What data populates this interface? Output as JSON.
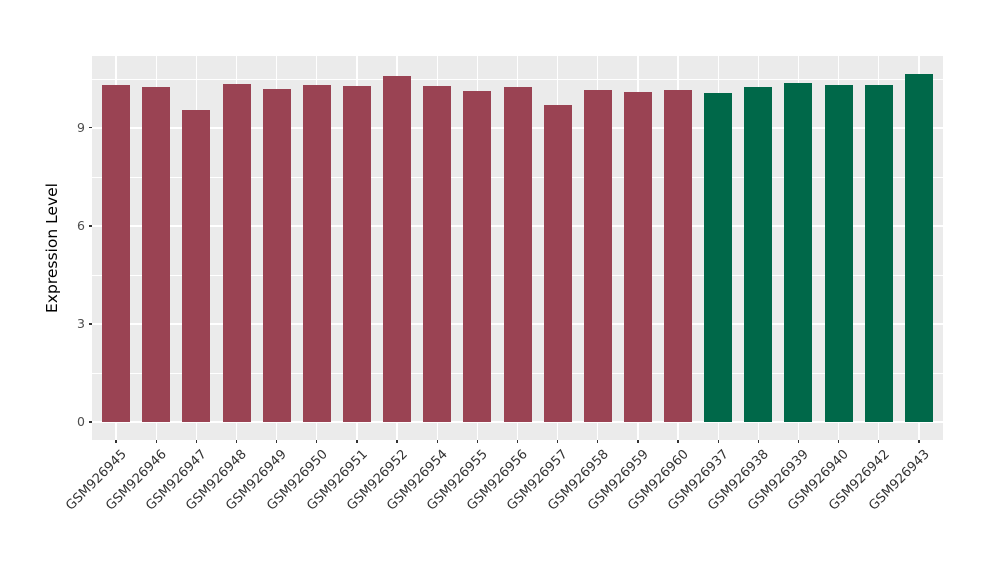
{
  "figure": {
    "background": "#FFFFFF",
    "panel_background": "#EBEBEB",
    "gridline_color": "#FFFFFF",
    "tick_mark_color": "#333333",
    "axis_text_color": "#4D4D4D",
    "axis_title_color": "#000000"
  },
  "chart_data": {
    "type": "bar",
    "title": "",
    "xlabel": "",
    "ylabel": "Expression Level",
    "grid": true,
    "legend_position": "none",
    "x_label_angle": 45,
    "bar_width_fraction": 0.7,
    "categories": [
      "GSM926945",
      "GSM926946",
      "GSM926947",
      "GSM926948",
      "GSM926949",
      "GSM926950",
      "GSM926951",
      "GSM926952",
      "GSM926954",
      "GSM926955",
      "GSM926956",
      "GSM926957",
      "GSM926958",
      "GSM926959",
      "GSM926960",
      "GSM926937",
      "GSM926938",
      "GSM926939",
      "GSM926940",
      "GSM926942",
      "GSM926943"
    ],
    "values": [
      10.3,
      10.25,
      9.56,
      10.34,
      10.18,
      10.31,
      10.28,
      10.58,
      10.27,
      10.12,
      10.24,
      9.71,
      10.16,
      10.09,
      10.15,
      10.07,
      10.24,
      10.36,
      10.31,
      10.3,
      10.64
    ],
    "groups": [
      "group1",
      "group1",
      "group1",
      "group1",
      "group1",
      "group1",
      "group1",
      "group1",
      "group1",
      "group1",
      "group1",
      "group1",
      "group1",
      "group1",
      "group1",
      "group2",
      "group2",
      "group2",
      "group2",
      "group2",
      "group2"
    ],
    "group_colors": {
      "group1": "#9A4353",
      "group2": "#006849"
    },
    "yticks": [
      0,
      3,
      6,
      9
    ],
    "ytick_labels": [
      "0",
      "3",
      "6",
      "9"
    ],
    "yticks_minor": [
      1.5,
      4.5,
      7.5,
      10.5
    ],
    "ylim": [
      -0.55,
      11.2
    ]
  }
}
